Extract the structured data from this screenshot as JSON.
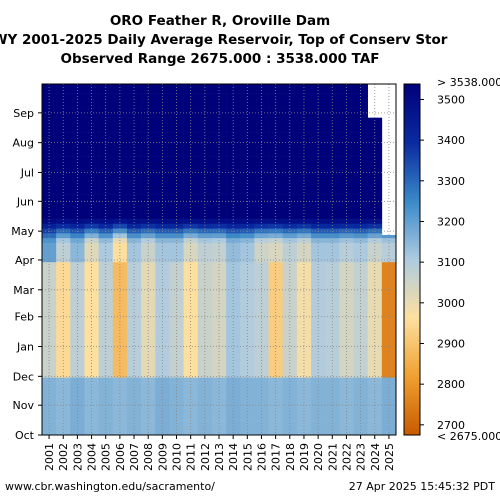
{
  "chart_data": {
    "type": "heatmap",
    "title_lines": [
      "ORO Feather R, Oroville Dam",
      "WY 2001-2025 Daily Average Reservoir, Top of Conserv Stor",
      "Observed Range 2675.000 : 3538.000 TAF"
    ],
    "x_categories": [
      "2001",
      "2002",
      "2003",
      "2004",
      "2005",
      "2006",
      "2007",
      "2008",
      "2009",
      "2010",
      "2011",
      "2012",
      "2013",
      "2014",
      "2015",
      "2016",
      "2017",
      "2018",
      "2019",
      "2020",
      "2021",
      "2022",
      "2023",
      "2024",
      "2025"
    ],
    "y_month_labels": [
      "Oct",
      "Nov",
      "Dec",
      "Jan",
      "Feb",
      "Mar",
      "Apr",
      "May",
      "Jun",
      "Jul",
      "Aug",
      "Sep"
    ],
    "value_range": [
      2675,
      3538
    ],
    "colorbar": {
      "ticks": [
        2700,
        2800,
        2900,
        3000,
        3100,
        3200,
        3300,
        3400,
        3500
      ],
      "top_label": "> 3538.000",
      "bottom_label": "< 2675.000",
      "colors": [
        "#c85a00",
        "#f0a030",
        "#fde0a0",
        "#aecbe0",
        "#3a88c8",
        "#0a2aa0",
        "#00007a"
      ]
    },
    "series": [
      {
        "year": "2001",
        "oct_nov": 3160,
        "dec_mar": 3060,
        "april": 3200,
        "may_sep": 3538,
        "ends_day": 365
      },
      {
        "year": "2002",
        "oct_nov": 3150,
        "dec_mar": 2950,
        "april": 3080,
        "may_sep": 3538,
        "ends_day": 365
      },
      {
        "year": "2003",
        "oct_nov": 3170,
        "dec_mar": 3080,
        "april": 3150,
        "may_sep": 3538,
        "ends_day": 365
      },
      {
        "year": "2004",
        "oct_nov": 3150,
        "dec_mar": 2960,
        "april": 3020,
        "may_sep": 3538,
        "ends_day": 365
      },
      {
        "year": "2005",
        "oct_nov": 3160,
        "dec_mar": 3080,
        "april": 3110,
        "may_sep": 3538,
        "ends_day": 365
      },
      {
        "year": "2006",
        "oct_nov": 3150,
        "dec_mar": 2880,
        "april": 2960,
        "may_sep": 3538,
        "ends_day": 365
      },
      {
        "year": "2007",
        "oct_nov": 3160,
        "dec_mar": 3090,
        "april": 3120,
        "may_sep": 3538,
        "ends_day": 365
      },
      {
        "year": "2008",
        "oct_nov": 3150,
        "dec_mar": 3010,
        "april": 3060,
        "may_sep": 3538,
        "ends_day": 365
      },
      {
        "year": "2009",
        "oct_nov": 3170,
        "dec_mar": 3100,
        "april": 3120,
        "may_sep": 3538,
        "ends_day": 365
      },
      {
        "year": "2010",
        "oct_nov": 3160,
        "dec_mar": 3070,
        "april": 3120,
        "may_sep": 3538,
        "ends_day": 365
      },
      {
        "year": "2011",
        "oct_nov": 3150,
        "dec_mar": 2960,
        "april": 3030,
        "may_sep": 3538,
        "ends_day": 365
      },
      {
        "year": "2012",
        "oct_nov": 3160,
        "dec_mar": 3060,
        "april": 3080,
        "may_sep": 3538,
        "ends_day": 365
      },
      {
        "year": "2013",
        "oct_nov": 3150,
        "dec_mar": 3040,
        "april": 3070,
        "may_sep": 3538,
        "ends_day": 365
      },
      {
        "year": "2014",
        "oct_nov": 3170,
        "dec_mar": 3120,
        "april": 3140,
        "may_sep": 3538,
        "ends_day": 365
      },
      {
        "year": "2015",
        "oct_nov": 3160,
        "dec_mar": 3100,
        "april": 3120,
        "may_sep": 3538,
        "ends_day": 365
      },
      {
        "year": "2016",
        "oct_nov": 3160,
        "dec_mar": 3080,
        "april": 3050,
        "may_sep": 3538,
        "ends_day": 365
      },
      {
        "year": "2017",
        "oct_nov": 3150,
        "dec_mar": 2920,
        "april": 3030,
        "may_sep": 3538,
        "ends_day": 365
      },
      {
        "year": "2018",
        "oct_nov": 3160,
        "dec_mar": 3060,
        "april": 3080,
        "may_sep": 3538,
        "ends_day": 365
      },
      {
        "year": "2019",
        "oct_nov": 3150,
        "dec_mar": 2980,
        "april": 3040,
        "may_sep": 3538,
        "ends_day": 365
      },
      {
        "year": "2020",
        "oct_nov": 3160,
        "dec_mar": 3100,
        "april": 3120,
        "may_sep": 3538,
        "ends_day": 365
      },
      {
        "year": "2021",
        "oct_nov": 3160,
        "dec_mar": 3090,
        "april": 3120,
        "may_sep": 3538,
        "ends_day": 365
      },
      {
        "year": "2022",
        "oct_nov": 3150,
        "dec_mar": 3040,
        "april": 3090,
        "may_sep": 3538,
        "ends_day": 365
      },
      {
        "year": "2023",
        "oct_nov": 3160,
        "dec_mar": 3070,
        "april": 3110,
        "may_sep": 3538,
        "ends_day": 365
      },
      {
        "year": "2024",
        "oct_nov": 3150,
        "dec_mar": 3000,
        "april": 3060,
        "may_sep": 3538,
        "ends_day": 330
      },
      {
        "year": "2025",
        "oct_nov": 3170,
        "dec_mar": 2760,
        "april": 3090,
        "may_sep": 3538,
        "ends_day": 208
      }
    ],
    "grid": "dotted"
  },
  "footer": {
    "left": "www.cbr.washington.edu/sacramento/",
    "right": "27 Apr 2025 15:45:32 PDT"
  }
}
